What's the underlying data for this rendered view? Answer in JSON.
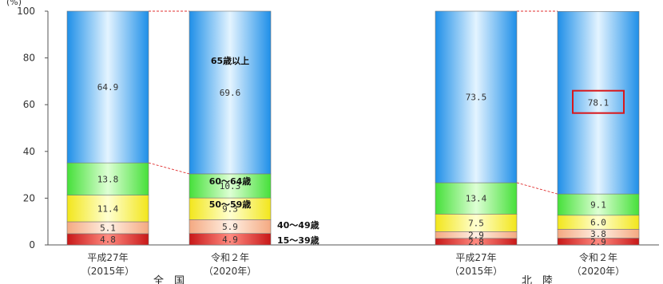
{
  "chart_data": {
    "type": "bar",
    "stacked": true,
    "unit": "(%)",
    "ylim": [
      0,
      100
    ],
    "yticks": [
      0,
      20,
      40,
      60,
      80,
      100
    ],
    "groups": [
      "全　国",
      "北　陸"
    ],
    "categories": [
      {
        "group": 0,
        "line1": "平成27年",
        "line2": "（2015年）"
      },
      {
        "group": 0,
        "line1": "令和２年",
        "line2": "（2020年）"
      },
      {
        "group": 1,
        "line1": "平成27年",
        "line2": "（2015年）"
      },
      {
        "group": 1,
        "line1": "令和２年",
        "line2": "（2020年）"
      }
    ],
    "series": [
      {
        "name": "15～39歳",
        "color": "#e8403f",
        "values": [
          4.8,
          4.9,
          2.8,
          2.9
        ]
      },
      {
        "name": "40～49歳",
        "color": "#f9c8a8",
        "values": [
          5.1,
          5.9,
          2.9,
          3.8
        ]
      },
      {
        "name": "50～59歳",
        "color": "#fbf44d",
        "values": [
          11.4,
          9.3,
          7.5,
          6.0
        ]
      },
      {
        "name": "60～64歳",
        "color": "#7df06a",
        "values": [
          13.8,
          10.3,
          13.4,
          9.1
        ]
      },
      {
        "name": "65歳以上",
        "color": "#3a9ee6",
        "values": [
          64.9,
          69.6,
          73.5,
          78.1
        ]
      }
    ],
    "segment_labels": [
      [
        "4.8",
        "5.1",
        "11.4",
        "13.8",
        "64.9"
      ],
      [
        "4.9",
        "5.9",
        "9.3",
        "10.3",
        "69.6"
      ],
      [
        "2.8",
        "2.9",
        "7.5",
        "13.4",
        "73.5"
      ],
      [
        "2.9",
        "3.8",
        "6.0",
        "9.1",
        "78.1"
      ]
    ],
    "highlight": {
      "category": 3,
      "series": 4
    },
    "legend_annotations": [
      "65歳以上",
      "60～64歳",
      "50～59歳",
      "40～49歳",
      "15～39歳"
    ]
  }
}
